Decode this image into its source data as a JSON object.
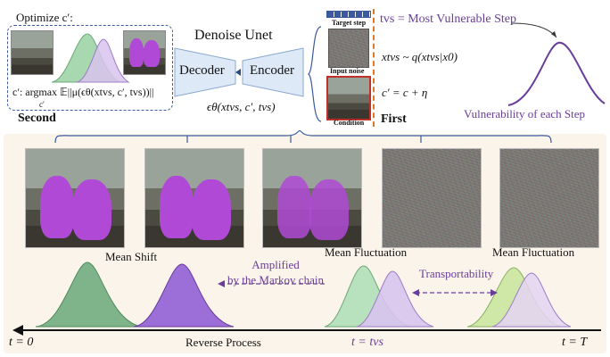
{
  "left_panel": {
    "title": "Optimize c′:",
    "formula": "c′: argmax 𝔼||μ(ϵθ(xtvs, c′, tvs))||",
    "formula_sub": "c′",
    "stage_label": "Second"
  },
  "unet": {
    "title": "Denoise Unet",
    "decoder_label": "Decoder",
    "encoder_label": "Encoder",
    "formula": "ϵθ(xtvs, c′, tvs)"
  },
  "middle": {
    "target_step_label": "Target step",
    "input_noise_label": "Input noise",
    "condition_label": "Condition",
    "stage_label": "First"
  },
  "equations": {
    "tvs_def": "tvs = Most Vulnerable Step",
    "sampling": "xtvs ~ q(xtvs|x0)",
    "perturb": "c′ = c + η"
  },
  "vulnerability_label": "Vulnerability of each Step",
  "bottom": {
    "image_captions": [
      "Mean Shift",
      "Mean Fluctuation",
      "Mean Fluctuation"
    ],
    "amplified_label": "Amplified\nby the Markov chain",
    "transportability_label": "Transportability",
    "axis_left": "t = 0",
    "axis_mid_label": "Reverse Process",
    "axis_tvs": "t = tvs",
    "axis_right": "t = T"
  },
  "colors": {
    "accent_purple": "#6a3d9a",
    "green_fill": "#9fd3a8",
    "purple_fill": "#c7a8e8",
    "unet_blue": "#dde9f7",
    "bottom_panel_bg": "#fbf4ea"
  }
}
